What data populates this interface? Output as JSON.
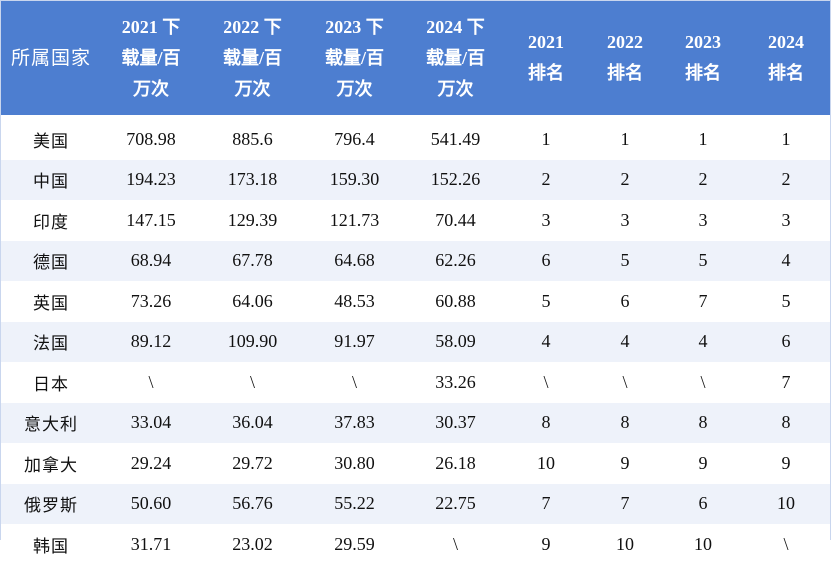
{
  "table": {
    "headers": [
      [
        "所属国家"
      ],
      [
        "2021 下",
        "载量/百",
        "万次"
      ],
      [
        "2022 下",
        "载量/百",
        "万次"
      ],
      [
        "2023 下",
        "载量/百",
        "万次"
      ],
      [
        "2024 下",
        "载量/百",
        "万次"
      ],
      [
        "2021",
        "排名"
      ],
      [
        "2022",
        "排名"
      ],
      [
        "2023",
        "排名"
      ],
      [
        "2024",
        "排名"
      ]
    ],
    "rows": [
      [
        "美国",
        "708.98",
        "885.6",
        "796.4",
        "541.49",
        "1",
        "1",
        "1",
        "1"
      ],
      [
        "中国",
        "194.23",
        "173.18",
        "159.30",
        "152.26",
        "2",
        "2",
        "2",
        "2"
      ],
      [
        "印度",
        "147.15",
        "129.39",
        "121.73",
        "70.44",
        "3",
        "3",
        "3",
        "3"
      ],
      [
        "德国",
        "68.94",
        "67.78",
        "64.68",
        "62.26",
        "6",
        "5",
        "5",
        "4"
      ],
      [
        "英国",
        "73.26",
        "64.06",
        "48.53",
        "60.88",
        "5",
        "6",
        "7",
        "5"
      ],
      [
        "法国",
        "89.12",
        "109.90",
        "91.97",
        "58.09",
        "4",
        "4",
        "4",
        "6"
      ],
      [
        "日本",
        "\\",
        "\\",
        "\\",
        "33.26",
        "\\",
        "\\",
        "\\",
        "7"
      ],
      [
        "意大利",
        "33.04",
        "36.04",
        "37.83",
        "30.37",
        "8",
        "8",
        "8",
        "8"
      ],
      [
        "加拿大",
        "29.24",
        "29.72",
        "30.80",
        "26.18",
        "10",
        "9",
        "9",
        "9"
      ],
      [
        "俄罗斯",
        "50.60",
        "56.76",
        "55.22",
        "22.75",
        "7",
        "7",
        "6",
        "10"
      ],
      [
        "韩国",
        "31.71",
        "23.02",
        "29.59",
        "\\",
        "9",
        "10",
        "10",
        "\\"
      ]
    ]
  },
  "colors": {
    "header_bg": "#4d7ed0",
    "header_text": "#ffffff",
    "stripe_bg": "#eef2fa"
  }
}
